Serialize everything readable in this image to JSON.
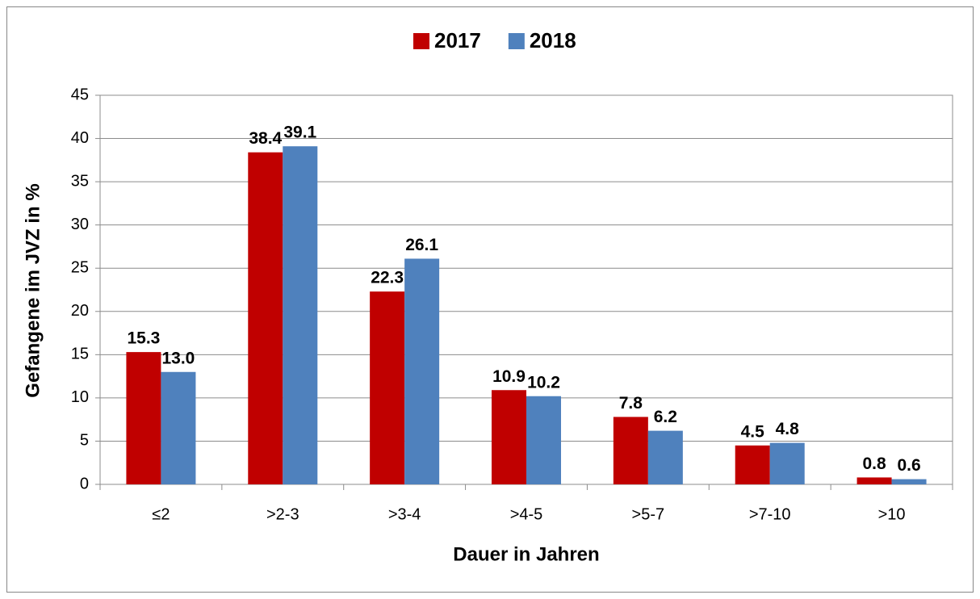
{
  "chart_data": {
    "type": "bar",
    "xlabel": "Dauer in Jahren",
    "ylabel": "Gefangene im JVZ  in %",
    "categories": [
      "≤2",
      ">2-3",
      ">3-4",
      ">4-5",
      ">5-7",
      ">7-10",
      ">10"
    ],
    "series": [
      {
        "name": "2017",
        "color": "#c00000",
        "values": [
          15.3,
          38.4,
          22.3,
          10.9,
          7.8,
          4.5,
          0.8
        ],
        "value_labels": [
          "15.3",
          "38.4",
          "22.3",
          "10.9",
          "7.8",
          "4.5",
          "0.8"
        ]
      },
      {
        "name": "2018",
        "color": "#4f81bd",
        "values": [
          13,
          39.1,
          26.1,
          10.2,
          6.2,
          4.8,
          0.6
        ],
        "value_labels": [
          "13.0",
          "39.1",
          "26.1",
          "10.2",
          "6.2",
          "4.8",
          "0.6"
        ]
      }
    ],
    "ylim": [
      0,
      45
    ],
    "yticks": [
      0,
      5,
      10,
      15,
      20,
      25,
      30,
      35,
      40,
      45
    ],
    "grid": true,
    "legend": "top"
  }
}
